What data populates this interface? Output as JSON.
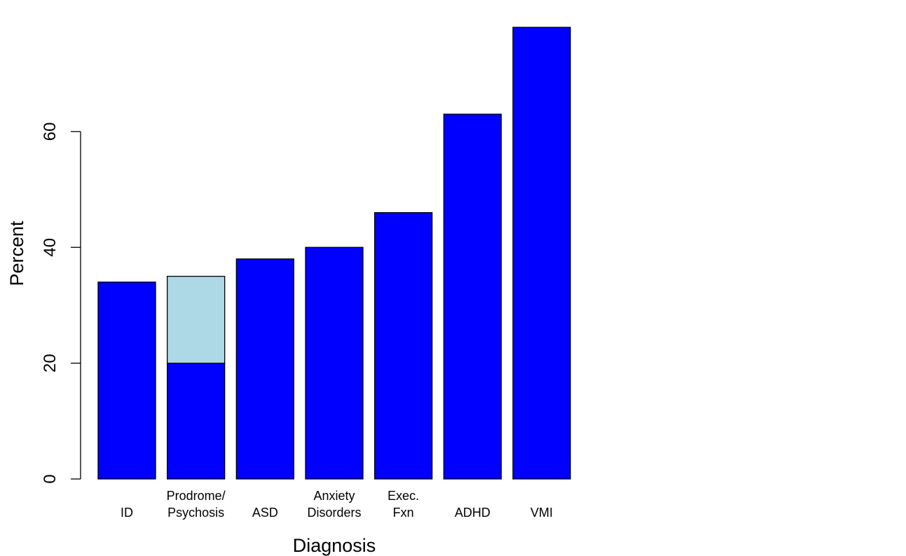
{
  "chart_data": {
    "type": "bar",
    "stacked": true,
    "xlabel": "Diagnosis",
    "ylabel": "Percent",
    "categories": [
      [
        "ID"
      ],
      [
        "Prodrome/",
        "Psychosis"
      ],
      [
        "ASD"
      ],
      [
        "Anxiety",
        "Disorders"
      ],
      [
        "Exec.",
        "Fxn"
      ],
      [
        "ADHD"
      ],
      [
        "VMI"
      ]
    ],
    "series": [
      {
        "color": "#0000ff",
        "values": [
          34,
          20,
          38,
          40,
          46,
          63,
          78
        ]
      },
      {
        "color": "#add8e6",
        "values": [
          0,
          15,
          0,
          0,
          0,
          0,
          0
        ]
      }
    ],
    "ylim": [
      0,
      78
    ],
    "yticks": [
      0,
      20,
      40,
      60
    ],
    "grid": false,
    "legend": "none"
  }
}
